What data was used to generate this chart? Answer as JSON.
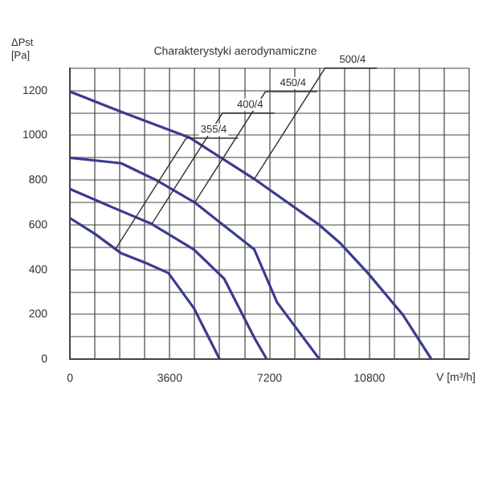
{
  "chart_data": {
    "type": "line",
    "title": "Charakterystyki aerodynamiczne",
    "xlabel": "V [m³/h]",
    "ylabel": "ΔPst [Pa]",
    "xlim": [
      0,
      14400
    ],
    "xticks": [
      0,
      {
        "value": 900,
        "label": null
      },
      {
        "value": 1800,
        "label": null
      },
      {
        "value": 2700,
        "label": null
      },
      3600,
      {
        "value": 4500,
        "label": null
      },
      {
        "value": 5400,
        "label": null
      },
      {
        "value": 6300,
        "label": null
      },
      7200,
      {
        "value": 8100,
        "label": null
      },
      {
        "value": 9000,
        "label": null
      },
      {
        "value": 9900,
        "label": null
      },
      10800,
      {
        "value": 11700,
        "label": null
      },
      {
        "value": 12600,
        "label": null
      },
      {
        "value": 13500,
        "label": null
      },
      {
        "value": 14400,
        "label": null
      }
    ],
    "ylim": [
      0,
      1300
    ],
    "yticks": [
      0,
      {
        "value": 100,
        "label": null
      },
      200,
      {
        "value": 300,
        "label": null
      },
      400,
      {
        "value": 500,
        "label": null
      },
      600,
      {
        "value": 700,
        "label": null
      },
      800,
      {
        "value": 900,
        "label": null
      },
      1000,
      {
        "value": 1100,
        "label": null
      },
      1200,
      {
        "value": 1300,
        "label": null
      }
    ],
    "grid": true,
    "legend": false,
    "marker": "none",
    "line_style": "solid",
    "series": [
      {
        "color": "#3b3b8f",
        "x": [
          0,
          900,
          1850,
          2730,
          3550,
          4470,
          5400
        ],
        "values": [
          630,
          560,
          473,
          430,
          385,
          228,
          0
        ]
      },
      {
        "color": "#3b3b8f",
        "x": [
          0,
          1500,
          2950,
          4470,
          5560,
          6650,
          7100
        ],
        "values": [
          760,
          680,
          604,
          490,
          360,
          96,
          0
        ]
      },
      {
        "color": "#3b3b8f",
        "x": [
          0,
          1850,
          3110,
          4500,
          6650,
          7470,
          9000
        ],
        "values": [
          900,
          875,
          800,
          700,
          490,
          254,
          0
        ]
      },
      {
        "color": "#3b3b8f",
        "x": [
          0,
          1850,
          4310,
          6650,
          8950,
          9760,
          10745,
          12000,
          13040
        ],
        "values": [
          1195,
          1105,
          990,
          805,
          604,
          517,
          385,
          200,
          0
        ]
      }
    ],
    "annotations": [
      {
        "text": "355/4",
        "x": 1640,
        "y": 492
      },
      {
        "text": "400/4",
        "x": 2950,
        "y": 604
      },
      {
        "text": "450/4",
        "x": 4500,
        "y": 700
      },
      {
        "text": "500/4",
        "x": 6650,
        "y": 805
      }
    ]
  }
}
